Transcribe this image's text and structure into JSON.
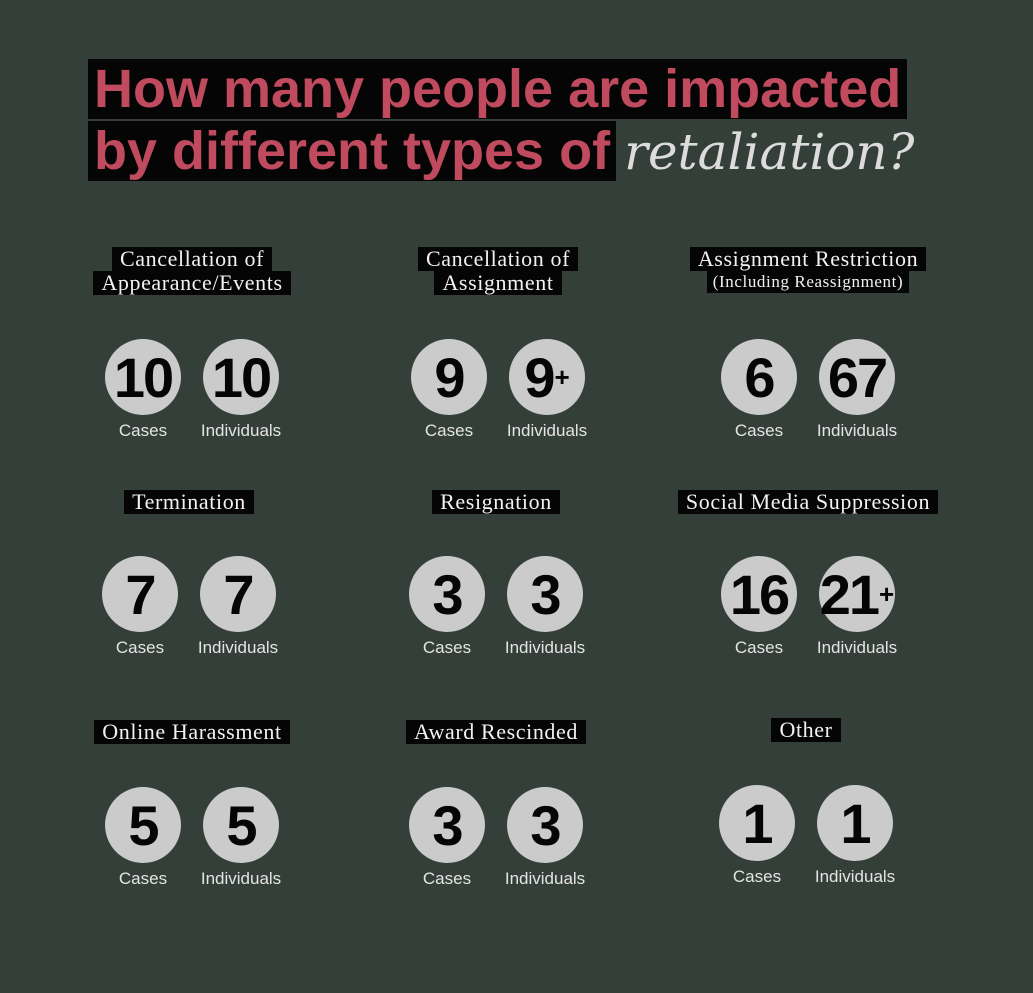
{
  "title": {
    "line1": "How many people are impacted",
    "line2": "by different types of",
    "accent": "retaliation?"
  },
  "colors": {
    "background": "#333f38",
    "title_red": "#c04a5e",
    "circle": "#cbcbcb"
  },
  "stat_labels": {
    "cases": "Cases",
    "individuals": "Individuals"
  },
  "categories": [
    {
      "lines": [
        "Cancellation of",
        "Appearance/Events"
      ],
      "sub": "",
      "cases": "10",
      "individuals": "10",
      "plus": ""
    },
    {
      "lines": [
        "Cancellation of",
        "Assignment"
      ],
      "sub": "",
      "cases": "9",
      "individuals": "9",
      "plus": "+"
    },
    {
      "lines": [
        "Assignment Restriction"
      ],
      "sub": "(Including Reassignment)",
      "cases": "6",
      "individuals": "67",
      "plus": ""
    },
    {
      "lines": [
        "Termination"
      ],
      "sub": "",
      "cases": "7",
      "individuals": "7",
      "plus": ""
    },
    {
      "lines": [
        "Resignation"
      ],
      "sub": "",
      "cases": "3",
      "individuals": "3",
      "plus": ""
    },
    {
      "lines": [
        "Social Media Suppression"
      ],
      "sub": "",
      "cases": "16",
      "individuals": "21",
      "plus": "+"
    },
    {
      "lines": [
        "Online Harassment"
      ],
      "sub": "",
      "cases": "5",
      "individuals": "5",
      "plus": ""
    },
    {
      "lines": [
        "Award Rescinded"
      ],
      "sub": "",
      "cases": "3",
      "individuals": "3",
      "plus": ""
    },
    {
      "lines": [
        "Other"
      ],
      "sub": "",
      "cases": "1",
      "individuals": "1",
      "plus": ""
    }
  ]
}
